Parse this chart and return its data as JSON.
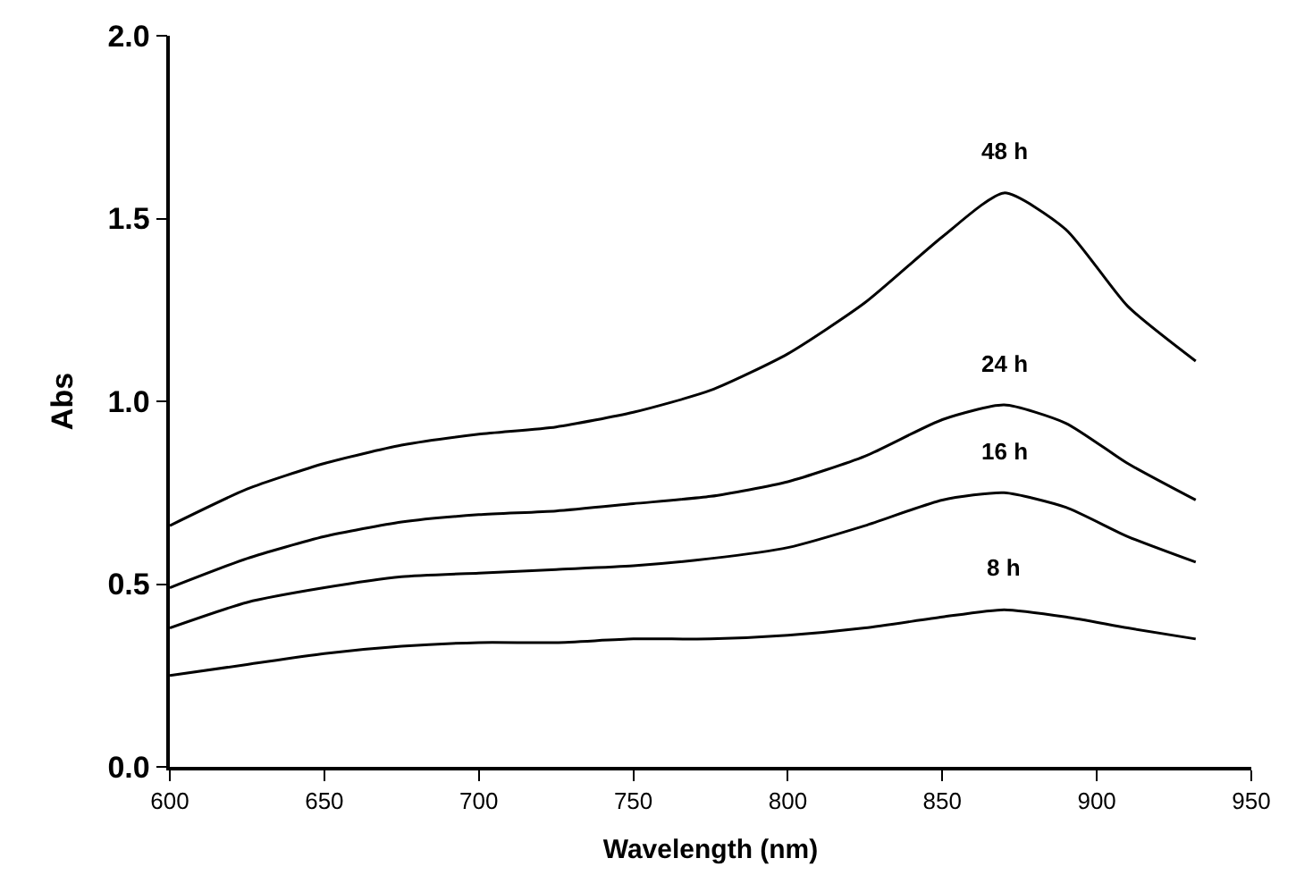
{
  "chart_data": {
    "type": "line",
    "xlabel": "Wavelength (nm)",
    "ylabel": "Abs",
    "x": [
      600,
      625,
      650,
      675,
      700,
      725,
      750,
      775,
      800,
      825,
      850,
      870,
      890,
      910,
      932
    ],
    "series": [
      {
        "name": "48 h",
        "color": "#000000",
        "values": [
          0.66,
          0.76,
          0.83,
          0.88,
          0.91,
          0.93,
          0.97,
          1.03,
          1.13,
          1.27,
          1.45,
          1.57,
          1.47,
          1.26,
          1.11
        ]
      },
      {
        "name": "24 h",
        "color": "#000000",
        "values": [
          0.49,
          0.57,
          0.63,
          0.67,
          0.69,
          0.7,
          0.72,
          0.74,
          0.78,
          0.85,
          0.95,
          0.99,
          0.94,
          0.83,
          0.73
        ]
      },
      {
        "name": "16 h",
        "color": "#000000",
        "values": [
          0.38,
          0.45,
          0.49,
          0.52,
          0.53,
          0.54,
          0.55,
          0.57,
          0.6,
          0.66,
          0.73,
          0.75,
          0.71,
          0.63,
          0.56
        ]
      },
      {
        "name": "8 h",
        "color": "#000000",
        "values": [
          0.25,
          0.28,
          0.31,
          0.33,
          0.34,
          0.34,
          0.35,
          0.35,
          0.36,
          0.38,
          0.41,
          0.43,
          0.41,
          0.38,
          0.35
        ]
      }
    ],
    "xlim": [
      600,
      950
    ],
    "xticks": [
      600,
      650,
      700,
      750,
      800,
      850,
      900,
      950
    ],
    "ylim": [
      0,
      2
    ],
    "yticks": [
      {
        "value": 0,
        "label": "0.0"
      },
      {
        "value": 0.5,
        "label": "0.5"
      },
      {
        "value": 1,
        "label": "1.0"
      },
      {
        "value": 1.5,
        "label": "1.5"
      },
      {
        "value": 2,
        "label": "2.0"
      }
    ],
    "grid": false,
    "legend": false,
    "marker": "none",
    "line_style": "solid"
  }
}
